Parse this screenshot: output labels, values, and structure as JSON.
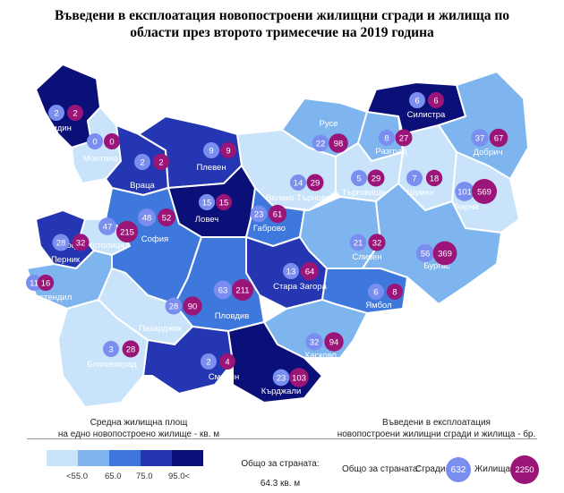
{
  "title_line1": "Въведени в експлоатация новопостроени жилищни сгради и жилища по",
  "title_line2": "области през второто тримесечие на 2019 година",
  "colors": {
    "c1": "#c9e4fa",
    "c2": "#7fb5ee",
    "c3": "#3f78dd",
    "c4": "#2536b3",
    "c5": "#0b0f78",
    "buildings_bubble": "#7a8ef0",
    "dwellings_bubble": "#9b1477",
    "border": "#ffffff"
  },
  "regions": [
    {
      "name": "Видин",
      "buildings": 2,
      "dwellings": 2
    },
    {
      "name": "Монтана",
      "buildings": 0,
      "dwellings": 0
    },
    {
      "name": "Враца",
      "buildings": 2,
      "dwellings": 2
    },
    {
      "name": "Плевен",
      "buildings": 9,
      "dwellings": 9
    },
    {
      "name": "Ловеч",
      "buildings": 15,
      "dwellings": 15
    },
    {
      "name": "Велико Търново",
      "buildings": 14,
      "dwellings": 29
    },
    {
      "name": "Габрово",
      "buildings": 23,
      "dwellings": 61
    },
    {
      "name": "Русе",
      "buildings": 22,
      "dwellings": 98
    },
    {
      "name": "Разград",
      "buildings": 8,
      "dwellings": 27
    },
    {
      "name": "Силистра",
      "buildings": 6,
      "dwellings": 6
    },
    {
      "name": "Добрич",
      "buildings": 37,
      "dwellings": 67
    },
    {
      "name": "Търговище",
      "buildings": 5,
      "dwellings": 29
    },
    {
      "name": "Шумен",
      "buildings": 7,
      "dwellings": 18
    },
    {
      "name": "Варна",
      "buildings": 101,
      "dwellings": 569
    },
    {
      "name": "София",
      "buildings": 48,
      "dwellings": 52
    },
    {
      "name": "София (столица)",
      "buildings": 47,
      "dwellings": 215
    },
    {
      "name": "Перник",
      "buildings": 28,
      "dwellings": 32
    },
    {
      "name": "Кюстендил",
      "buildings": 11,
      "dwellings": 16
    },
    {
      "name": "Сливен",
      "buildings": 21,
      "dwellings": 32
    },
    {
      "name": "Бургас",
      "buildings": 56,
      "dwellings": 369
    },
    {
      "name": "Стара Загора",
      "buildings": 13,
      "dwellings": 64
    },
    {
      "name": "Пловдив",
      "buildings": 63,
      "dwellings": 211
    },
    {
      "name": "Пазарджик",
      "buildings": 28,
      "dwellings": 90
    },
    {
      "name": "Ямбол",
      "buildings": 6,
      "dwellings": 8
    },
    {
      "name": "Благоевград",
      "buildings": 3,
      "dwellings": 28
    },
    {
      "name": "Хасково",
      "buildings": 32,
      "dwellings": 94
    },
    {
      "name": "Смолян",
      "buildings": 2,
      "dwellings": 4
    },
    {
      "name": "Кърджали",
      "buildings": 23,
      "dwellings": 103
    }
  ],
  "legend": {
    "area_title_line1": "Средна жилищна площ",
    "area_title_line2": "на едно новопостроено жилище - кв. м",
    "ticks": [
      "<55.0",
      "65.0",
      "75.0",
      "95.0<"
    ],
    "country_total_label": "Общо за страната:",
    "country_total_value": "64.3 кв. м",
    "count_title_line1": "Въведени в експлоатация",
    "count_title_line2": "новопостроени жилищни сгради и жилища - бр.",
    "totals_label": "Общо за страната:",
    "buildings_label": "Сгради",
    "buildings_total": "632",
    "dwellings_label": "Жилища",
    "dwellings_total": "2250"
  }
}
